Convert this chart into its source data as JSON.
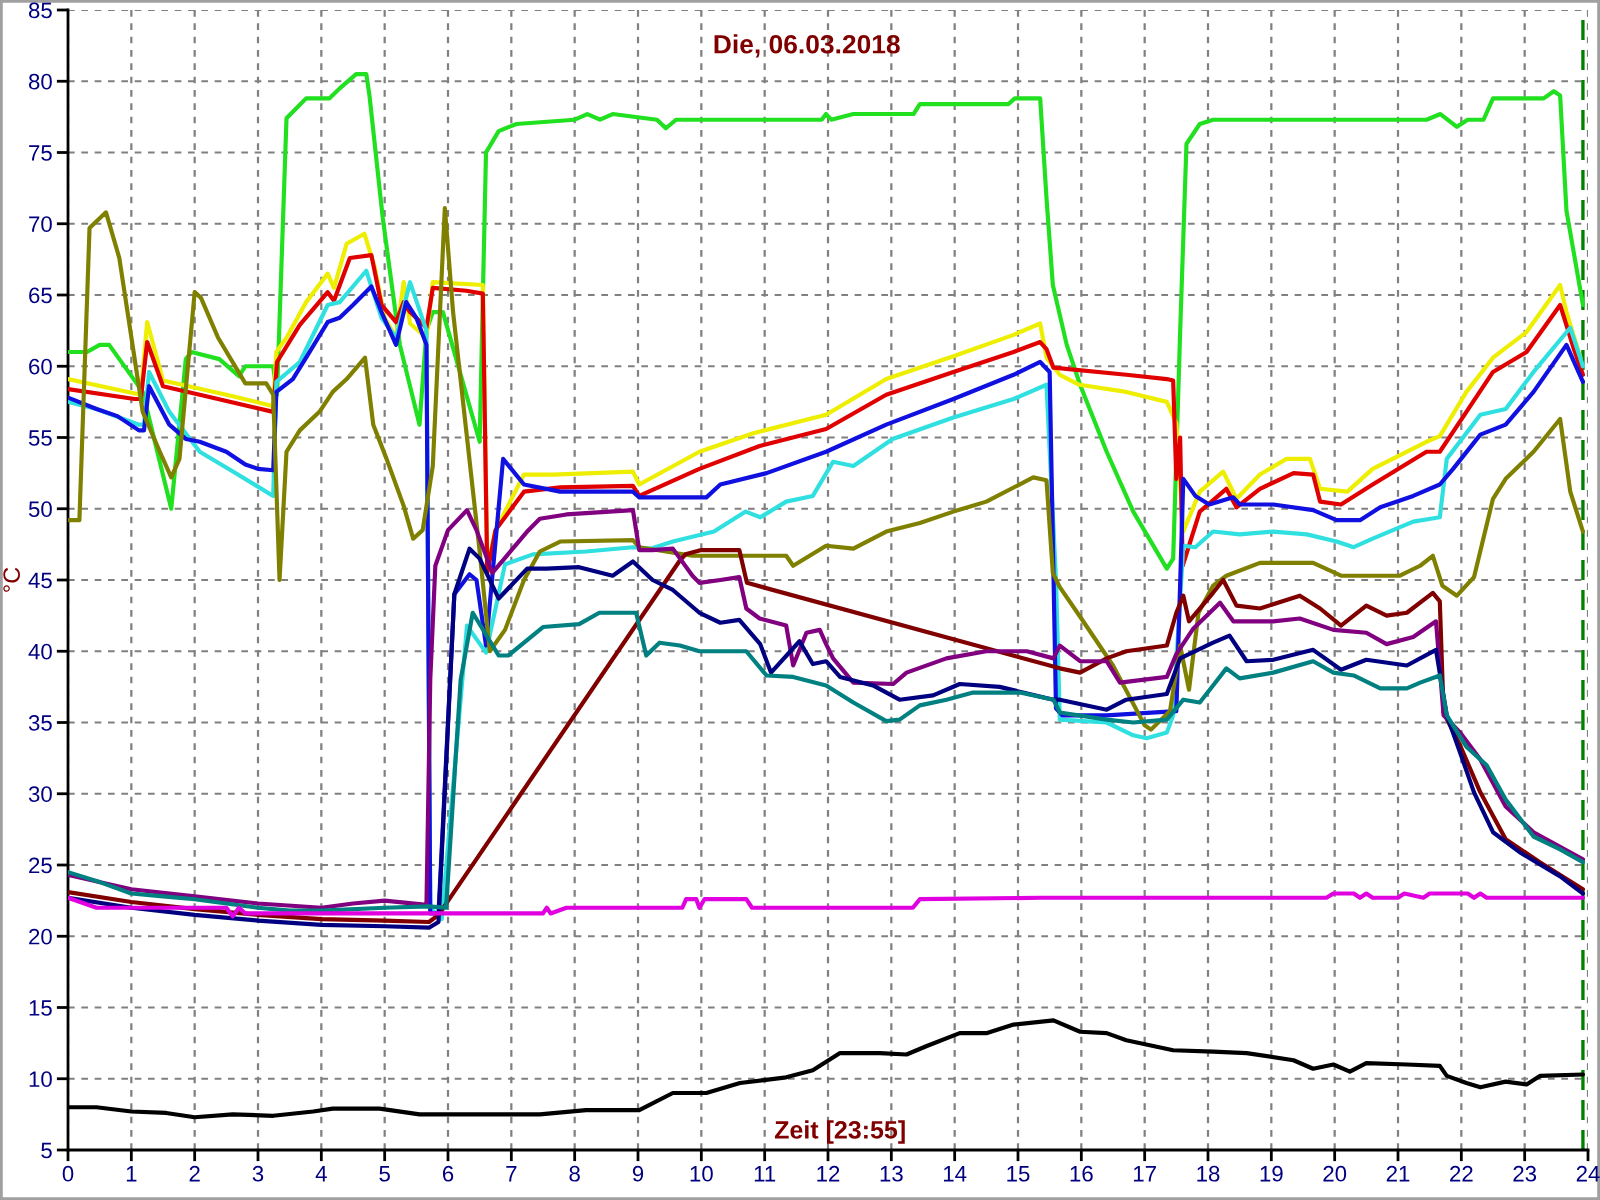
{
  "chart_data": {
    "type": "line",
    "title": "Die, 06.03.2018",
    "xlabel": "Zeit [23:55]",
    "ylabel": "°C",
    "xlim": [
      0,
      24
    ],
    "xticks": [
      0,
      1,
      2,
      3,
      4,
      5,
      6,
      7,
      8,
      9,
      10,
      11,
      12,
      13,
      14,
      15,
      16,
      17,
      18,
      19,
      20,
      21,
      22,
      23,
      24
    ],
    "ylim": [
      5,
      85
    ],
    "yticks": [
      5,
      10,
      15,
      20,
      25,
      30,
      35,
      40,
      45,
      50,
      55,
      60,
      65,
      70,
      75,
      80,
      85
    ],
    "grid": true,
    "line_style": "solid",
    "ref_lines": [
      {
        "axis": "x",
        "value": 23.92,
        "color": "#008000",
        "line_style": "dashed"
      }
    ],
    "series": [
      {
        "color": "#20e020",
        "x": [
          0,
          0.3,
          0.5,
          0.65,
          1.18,
          1.63,
          1.86,
          1.95,
          2.39,
          2.7,
          2.8,
          3.24,
          3.3,
          3.45,
          3.76,
          4.13,
          4.29,
          4.55,
          4.71,
          4.76,
          4.97,
          5.24,
          5.55,
          5.66,
          5.76,
          5.92,
          6.5,
          6.6,
          6.8,
          7.08,
          8.0,
          8.2,
          8.4,
          8.6,
          9.3,
          9.44,
          9.6,
          11.9,
          11.97,
          12.05,
          12.4,
          13.35,
          13.45,
          14.85,
          14.95,
          15.35,
          15.45,
          15.55,
          15.77,
          15.98,
          16.4,
          16.82,
          17.35,
          17.45,
          17.56,
          17.66,
          17.87,
          18.08,
          21.45,
          21.67,
          21.93,
          22.1,
          22.35,
          22.5,
          23.3,
          23.46,
          23.56,
          23.66,
          23.92
        ],
        "values": [
          61,
          61,
          61.5,
          61.5,
          58.2,
          50,
          60.5,
          61,
          60.5,
          59.3,
          60,
          60,
          58,
          77.4,
          78.8,
          78.8,
          79.5,
          80.5,
          80.5,
          79,
          70.4,
          61.5,
          55.9,
          62.5,
          63.8,
          63.8,
          54.7,
          75,
          76.5,
          77,
          77.3,
          77.7,
          77.3,
          77.7,
          77.3,
          76.7,
          77.3,
          77.3,
          77.7,
          77.3,
          77.7,
          77.7,
          78.4,
          78.4,
          78.8,
          78.8,
          71.8,
          65.7,
          61.5,
          58.7,
          54,
          49.8,
          45.8,
          46.5,
          62.4,
          75.6,
          77,
          77.3,
          77.3,
          77.7,
          76.8,
          77.3,
          77.3,
          78.8,
          78.8,
          79.3,
          79,
          70.9,
          64.3
        ]
      },
      {
        "color": "#eeee00",
        "x": [
          0,
          1.15,
          1.25,
          1.5,
          2.5,
          3.24,
          3.29,
          3.45,
          3.76,
          4.1,
          4.2,
          4.4,
          4.68,
          4.84,
          5.0,
          5.18,
          5.3,
          5.4,
          5.66,
          5.76,
          6.55,
          6.62,
          6.75,
          7.2,
          7.66,
          8.92,
          9.02,
          9.97,
          10.82,
          11.97,
          12.92,
          13.98,
          14.93,
          15.35,
          15.45,
          15.66,
          15.97,
          16.71,
          17.35,
          17.5,
          17.61,
          17.87,
          18.24,
          18.45,
          18.82,
          19.24,
          19.61,
          19.77,
          20.2,
          20.6,
          21.45,
          21.66,
          22.08,
          22.5,
          23.03,
          23.56,
          23.66,
          23.88
        ],
        "values": [
          59.1,
          58,
          63.1,
          59,
          58,
          57.2,
          61,
          62,
          64.5,
          66.5,
          65.5,
          68.6,
          69.3,
          67,
          63.4,
          62,
          65.9,
          63,
          62,
          65.9,
          65.7,
          45.8,
          48.5,
          52.4,
          52.4,
          52.6,
          51.7,
          54,
          55.3,
          56.6,
          59.1,
          60.7,
          62.2,
          63,
          60.6,
          59.4,
          58.7,
          58.2,
          57.5,
          56,
          48.4,
          51.2,
          52.6,
          50.7,
          52.4,
          53.5,
          53.5,
          51.4,
          51.2,
          52.8,
          54.7,
          55.1,
          58.2,
          60.6,
          62.4,
          65.7,
          63.8,
          60.6
        ]
      },
      {
        "color": "#e00000",
        "x": [
          0,
          1.05,
          1.15,
          1.25,
          1.5,
          2.08,
          3.24,
          3.3,
          3.66,
          4.1,
          4.2,
          4.45,
          4.79,
          4.95,
          5.18,
          5.3,
          5.4,
          5.66,
          5.76,
          6.29,
          6.55,
          6.62,
          6.75,
          7.2,
          7.77,
          8.92,
          9.02,
          9.97,
          10.92,
          11.97,
          12.92,
          13.98,
          14.93,
          15.35,
          15.45,
          15.56,
          16.71,
          17.35,
          17.45,
          17.5,
          17.56,
          17.6,
          17.87,
          18.29,
          18.45,
          18.82,
          19.35,
          19.66,
          19.77,
          20.1,
          20.6,
          21.45,
          21.66,
          22.08,
          22.5,
          23.03,
          23.56,
          23.77,
          23.92
        ],
        "values": [
          58.4,
          57.7,
          57.7,
          61.7,
          58.6,
          58,
          56.8,
          60.3,
          62.9,
          65.2,
          64.6,
          67.6,
          67.8,
          64.3,
          63.1,
          64.5,
          63.8,
          62.7,
          65.5,
          65.3,
          65.1,
          45.5,
          48.5,
          51.2,
          51.5,
          51.6,
          50.9,
          52.8,
          54.4,
          55.6,
          58,
          59.6,
          61,
          61.7,
          61.2,
          59.9,
          59.4,
          59.1,
          59,
          52.1,
          55,
          46,
          49.8,
          51.4,
          50.1,
          51.4,
          52.5,
          52.4,
          50.5,
          50.3,
          51.7,
          54,
          54,
          56.8,
          59.6,
          61,
          64.3,
          61.3,
          59.4
        ]
      },
      {
        "color": "#30e0e0",
        "x": [
          0,
          0.45,
          1.12,
          1.2,
          1.28,
          1.6,
          2.08,
          2.61,
          3.24,
          3.29,
          3.66,
          4.1,
          4.29,
          4.71,
          4.95,
          5.18,
          5.4,
          5.66,
          5.72,
          5.9,
          6.3,
          6.6,
          6.9,
          7.34,
          8.18,
          8.92,
          9.2,
          9.55,
          10.2,
          10.7,
          10.93,
          11.34,
          11.76,
          12.08,
          12.4,
          13.02,
          13.98,
          14.93,
          15.45,
          15.6,
          15.66,
          16.4,
          16.82,
          17.03,
          17.35,
          17.45,
          17.61,
          17.8,
          18.08,
          18.5,
          19.03,
          19.56,
          20.03,
          20.3,
          20.6,
          21.24,
          21.66,
          21.77,
          22.3,
          22.7,
          23.14,
          23.72,
          23.92
        ],
        "values": [
          57.5,
          57,
          55.9,
          55.9,
          59.6,
          56.8,
          54,
          52.6,
          50.9,
          58.9,
          60.3,
          64.3,
          64.5,
          66.7,
          63.4,
          62,
          65.9,
          62.5,
          22,
          21.2,
          41.8,
          39.9,
          46.1,
          46.8,
          47,
          47.3,
          47.2,
          47.7,
          48.4,
          49.8,
          49.4,
          50.5,
          50.9,
          53.3,
          53,
          54.9,
          56.4,
          57.7,
          58.7,
          45,
          35.2,
          35,
          34.1,
          33.9,
          34.3,
          35.5,
          47.4,
          47.3,
          48.4,
          48.2,
          48.4,
          48.2,
          47.7,
          47.3,
          47.9,
          49.1,
          49.4,
          53.5,
          56.6,
          57,
          59.6,
          62.7,
          60
        ]
      },
      {
        "color": "#1010e0",
        "x": [
          0,
          0.45,
          0.78,
          1.12,
          1.2,
          1.28,
          1.6,
          1.86,
          2.08,
          2.5,
          2.8,
          3.0,
          3.24,
          3.29,
          3.55,
          3.76,
          4.1,
          4.29,
          4.5,
          4.79,
          4.95,
          5.18,
          5.34,
          5.5,
          5.66,
          5.72,
          5.85,
          6.1,
          6.34,
          6.45,
          6.6,
          6.87,
          7.2,
          7.77,
          8.92,
          9.02,
          10.08,
          10.3,
          11.03,
          11.97,
          12.92,
          13.98,
          14.93,
          15.35,
          15.5,
          15.6,
          15.7,
          16.4,
          17.5,
          17.61,
          17.8,
          18.02,
          18.4,
          18.5,
          19.03,
          19.66,
          20.03,
          20.4,
          20.72,
          21.24,
          21.66,
          21.87,
          22.3,
          22.7,
          23.14,
          23.66,
          23.92
        ],
        "values": [
          57.8,
          57,
          56.5,
          55.5,
          55.5,
          58.6,
          55.9,
          54.9,
          54.7,
          54,
          53.1,
          52.8,
          52.7,
          58.2,
          59.1,
          60.6,
          63.1,
          63.4,
          64.3,
          65.6,
          63.8,
          61.5,
          64.5,
          63.4,
          61.5,
          21.6,
          21.6,
          44,
          45.4,
          45,
          40.4,
          53.5,
          51.7,
          51.2,
          51.2,
          50.8,
          50.8,
          51.7,
          52.5,
          54,
          55.9,
          57.7,
          59.4,
          60.3,
          59.6,
          36,
          35.5,
          35.5,
          35.8,
          52.1,
          50.9,
          50.3,
          50.8,
          50.3,
          50.3,
          49.9,
          49.2,
          49.2,
          50.1,
          50.9,
          51.7,
          52.8,
          55.2,
          55.9,
          58.2,
          61.5,
          58.9
        ]
      },
      {
        "color": "#808000",
        "x": [
          0,
          0.18,
          0.34,
          0.6,
          0.81,
          1.18,
          1.45,
          1.63,
          1.76,
          2.0,
          2.1,
          2.37,
          2.8,
          3.13,
          3.24,
          3.34,
          3.45,
          3.66,
          3.97,
          4.18,
          4.4,
          4.69,
          4.82,
          5.03,
          5.3,
          5.45,
          5.6,
          5.76,
          5.95,
          6.08,
          6.3,
          6.5,
          6.66,
          6.9,
          7.2,
          7.45,
          7.77,
          8.92,
          9.02,
          9.86,
          11.34,
          11.45,
          11.97,
          12.4,
          12.92,
          13.45,
          13.98,
          14.5,
          15.24,
          15.45,
          15.55,
          15.66,
          16.0,
          16.5,
          17.0,
          17.1,
          17.4,
          17.56,
          17.7,
          17.85,
          18.08,
          18.29,
          18.82,
          19.66,
          20.1,
          21.03,
          21.35,
          21.55,
          21.7,
          21.93,
          22.2,
          22.5,
          22.7,
          23.14,
          23.56,
          23.72,
          23.92
        ],
        "values": [
          49.2,
          49.2,
          69.7,
          70.8,
          67.6,
          56.8,
          54,
          52.2,
          53.5,
          65.2,
          64.8,
          62,
          58.8,
          58.8,
          58,
          45,
          54,
          55.5,
          56.8,
          58.2,
          59.1,
          60.6,
          55.9,
          53.5,
          50.2,
          47.9,
          48.5,
          53,
          71.1,
          63.8,
          55,
          47,
          40,
          41.5,
          45,
          47,
          47.7,
          47.8,
          47.3,
          46.7,
          46.7,
          46,
          47.4,
          47.2,
          48.4,
          49,
          49.8,
          50.5,
          52.2,
          52,
          45.5,
          44.5,
          42.3,
          39,
          34.8,
          34.5,
          35.8,
          40.4,
          37.3,
          42.7,
          44.6,
          45.3,
          46.2,
          46.2,
          45.3,
          45.3,
          46,
          46.7,
          44.6,
          43.9,
          45.2,
          50.7,
          52.1,
          54,
          56.3,
          51.2,
          48.4
        ]
      },
      {
        "color": "#800000",
        "x": [
          0,
          1,
          2,
          3,
          4,
          5,
          5.7,
          5.85,
          9.65,
          9.75,
          10.0,
          10.6,
          10.72,
          15.66,
          15.98,
          16.4,
          16.71,
          17.35,
          17.5,
          17.61,
          17.7,
          18.08,
          18.24,
          18.45,
          18.82,
          19.45,
          19.77,
          20.1,
          20.5,
          20.82,
          21.14,
          21.55,
          21.66,
          21.72,
          21.98,
          22.3,
          22.7,
          23.24,
          23.92
        ],
        "values": [
          23.1,
          22.4,
          21.9,
          21.5,
          21.2,
          21.1,
          21,
          21.5,
          46.3,
          46.8,
          47.1,
          47.1,
          44.8,
          38.8,
          38.5,
          39.5,
          40,
          40.4,
          42.7,
          43.9,
          42.1,
          44.1,
          45,
          43.2,
          43,
          43.9,
          43,
          41.8,
          43.2,
          42.5,
          42.7,
          44.1,
          43.5,
          35.7,
          33.4,
          30.1,
          26.8,
          25.2,
          23.3
        ]
      },
      {
        "color": "#800080",
        "x": [
          0,
          1,
          2,
          3,
          4,
          4.5,
          5,
          5.66,
          5.72,
          5.8,
          6.0,
          6.3,
          6.45,
          6.7,
          7.25,
          7.45,
          7.87,
          8.92,
          9.02,
          9.23,
          9.55,
          9.86,
          9.97,
          10.3,
          10.6,
          10.71,
          10.92,
          11.34,
          11.45,
          11.66,
          11.87,
          11.97,
          12.08,
          12.4,
          13.03,
          13.24,
          13.87,
          14.5,
          15.14,
          15.56,
          15.66,
          15.98,
          16.4,
          16.61,
          17.35,
          17.5,
          17.77,
          18.19,
          18.4,
          19.03,
          19.45,
          19.98,
          20.5,
          20.82,
          21.24,
          21.6,
          21.72,
          21.98,
          22.3,
          22.7,
          23.14,
          23.92
        ],
        "values": [
          24.3,
          23.3,
          22.8,
          22.3,
          22,
          22.3,
          22.5,
          22.2,
          38,
          46,
          48.5,
          49.9,
          48.5,
          45.5,
          48.4,
          49.3,
          49.6,
          49.9,
          47.1,
          47.1,
          47.2,
          45.3,
          44.8,
          45,
          45.2,
          43,
          42.3,
          41.8,
          39,
          41.3,
          41.5,
          40.5,
          39.5,
          37.8,
          37.7,
          38.5,
          39.5,
          40,
          40,
          39.5,
          40.4,
          39.3,
          39.3,
          37.8,
          38.2,
          39.8,
          41.6,
          43.4,
          42.1,
          42.1,
          42.3,
          41.5,
          41.3,
          40.5,
          41,
          42.1,
          35.5,
          34.3,
          32.4,
          29.1,
          27.3,
          25.4
        ]
      },
      {
        "color": "#000080",
        "x": [
          0,
          1,
          2,
          3,
          4,
          5,
          5.7,
          5.85,
          6.1,
          6.34,
          6.5,
          6.8,
          7.25,
          7.56,
          8.07,
          8.6,
          8.92,
          9.23,
          9.55,
          9.97,
          10.3,
          10.6,
          10.93,
          11.1,
          11.55,
          11.76,
          11.97,
          12.19,
          12.71,
          13.13,
          13.66,
          14.08,
          14.71,
          15.56,
          15.66,
          16.4,
          16.71,
          17.35,
          17.56,
          18.08,
          18.34,
          18.61,
          19.03,
          19.66,
          20.1,
          20.5,
          21.14,
          21.6,
          21.77,
          21.98,
          22.2,
          22.5,
          22.92,
          23.56,
          23.92
        ],
        "values": [
          22.7,
          22,
          21.5,
          21.1,
          20.8,
          20.7,
          20.6,
          21,
          44,
          47.2,
          46.5,
          43.7,
          45.8,
          45.8,
          45.9,
          45.3,
          46.3,
          45,
          44.3,
          42.7,
          42,
          42.2,
          40.5,
          38.5,
          40.7,
          39.1,
          39.3,
          38.2,
          37.6,
          36.6,
          36.9,
          37.7,
          37.5,
          36.6,
          36.6,
          35.9,
          36.6,
          37,
          39.5,
          40.6,
          41.1,
          39.3,
          39.4,
          40.1,
          38.7,
          39.4,
          39,
          40.1,
          35.5,
          32.9,
          30.1,
          27.3,
          25.9,
          24.2,
          23
        ]
      },
      {
        "color": "#008080",
        "x": [
          0,
          0.5,
          1,
          1.5,
          2,
          3,
          3.5,
          4,
          5,
          5.7,
          5.97,
          6.2,
          6.39,
          6.8,
          6.95,
          7.5,
          8.07,
          8.39,
          8.97,
          9.13,
          9.34,
          9.66,
          9.97,
          10.71,
          11.03,
          11.45,
          11.97,
          12.4,
          12.92,
          13.13,
          13.45,
          13.87,
          14.29,
          15.03,
          15.56,
          15.66,
          16.4,
          16.82,
          17.35,
          17.61,
          17.87,
          18.08,
          18.29,
          18.5,
          19.03,
          19.66,
          19.98,
          20.3,
          20.72,
          21.14,
          21.35,
          21.66,
          21.77,
          22.08,
          22.4,
          22.7,
          23.14,
          23.56,
          23.92
        ],
        "values": [
          24.5,
          23.8,
          23,
          22.8,
          22.6,
          22,
          21.8,
          21.8,
          22,
          22.1,
          22,
          38,
          42.7,
          39.7,
          39.7,
          41.7,
          41.9,
          42.7,
          42.7,
          39.7,
          40.6,
          40.4,
          40,
          40,
          38.3,
          38.2,
          37.6,
          36.4,
          35.1,
          35.2,
          36.2,
          36.6,
          37.1,
          37.1,
          36.6,
          35.7,
          35.2,
          35,
          35.2,
          36.6,
          36.4,
          37.6,
          38.8,
          38.1,
          38.5,
          39.3,
          38.5,
          38.3,
          37.4,
          37.4,
          37.8,
          38.3,
          35.5,
          33.3,
          32,
          29.6,
          27,
          26.1,
          25.2
        ]
      },
      {
        "color": "#e000e0",
        "x": [
          0,
          0.45,
          2.5,
          2.6,
          2.7,
          2.8,
          7.5,
          7.56,
          7.62,
          7.87,
          9.7,
          9.76,
          9.92,
          9.97,
          10.05,
          10.71,
          10.8,
          13.34,
          13.45,
          15.35,
          19.87,
          19.98,
          20.3,
          20.4,
          20.5,
          20.6,
          21.0,
          21.1,
          21.4,
          21.5,
          22.1,
          22.2,
          22.3,
          22.4,
          23.92
        ],
        "values": [
          22.7,
          22,
          22,
          21.4,
          22,
          21.6,
          21.6,
          22,
          21.6,
          22,
          22,
          22.6,
          22.6,
          22,
          22.6,
          22.6,
          22,
          22,
          22.6,
          22.7,
          22.7,
          23,
          23,
          22.7,
          23,
          22.7,
          22.7,
          23,
          22.7,
          23,
          23,
          22.7,
          23,
          22.7,
          22.7
        ]
      },
      {
        "color": "#000000",
        "x": [
          0,
          0.45,
          1.0,
          1.55,
          2.0,
          2.6,
          3.24,
          3.87,
          4.18,
          4.92,
          5.55,
          6.29,
          7.45,
          8.18,
          9.02,
          9.55,
          10.08,
          10.61,
          11.34,
          11.76,
          12.19,
          12.82,
          13.24,
          13.56,
          14.08,
          14.5,
          14.93,
          15.56,
          15.98,
          16.4,
          16.71,
          17.45,
          18.08,
          18.61,
          19.35,
          19.66,
          19.98,
          20.24,
          20.5,
          21.14,
          21.66,
          21.77,
          22.08,
          22.3,
          22.7,
          23.03,
          23.24,
          23.92
        ],
        "values": [
          8,
          8,
          7.7,
          7.6,
          7.3,
          7.5,
          7.4,
          7.7,
          7.9,
          7.9,
          7.5,
          7.5,
          7.5,
          7.8,
          7.8,
          9,
          9,
          9.7,
          10.1,
          10.6,
          11.8,
          11.8,
          11.7,
          12.3,
          13.2,
          13.2,
          13.8,
          14.1,
          13.3,
          13.2,
          12.7,
          12,
          11.9,
          11.8,
          11.3,
          10.7,
          11,
          10.5,
          11.1,
          11,
          10.9,
          10.2,
          9.7,
          9.4,
          9.8,
          9.6,
          10.2,
          10.3
        ]
      }
    ]
  }
}
